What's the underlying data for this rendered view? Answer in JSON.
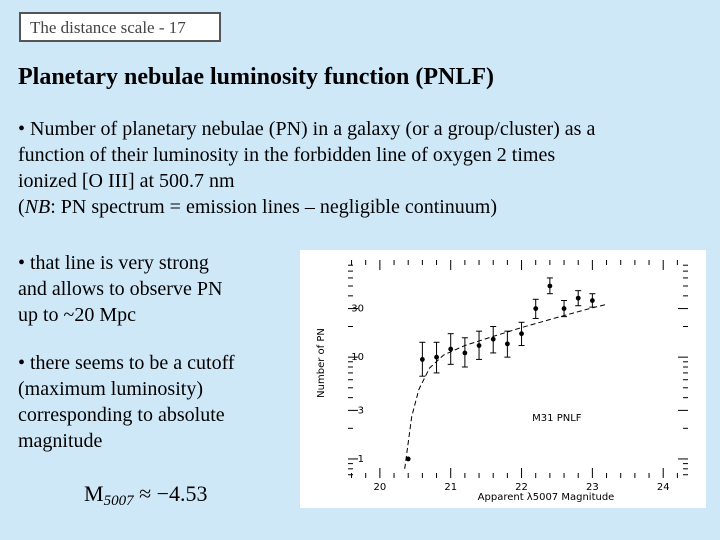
{
  "header": {
    "label": "The distance scale - 17"
  },
  "title": "Planetary nebulae luminosity function (PNLF)",
  "bullets": {
    "b1_lines": [
      "• Number of planetary nebulae (PN) in a galaxy (or a group/cluster) as a",
      "function of their luminosity in the forbidden line of oxygen 2 times",
      "ionized [O III] at 500.7 nm"
    ],
    "note_prefix": "(",
    "note_italic": "NB",
    "note_rest": ": PN spectrum = emission lines – negligible continuum)",
    "b2_lines": [
      "• that line is very strong",
      "and allows to observe PN",
      "up to ~20 Mpc"
    ],
    "b3_lines": [
      "• there seems to be a cutoff",
      "(maximum luminosity)",
      "corresponding to absolute",
      "magnitude"
    ]
  },
  "formula": {
    "symbol": "M",
    "subscript": "5007",
    "rest": " ≈ −4.53"
  },
  "colors": {
    "background": "#cfe8f8",
    "plot_background": "#ffffff",
    "ink": "#000000"
  },
  "chart_data": {
    "type": "scatter",
    "title": "",
    "annotation": "M31 PNLF",
    "xlabel": "Apparent λ5007 Magnitude",
    "ylabel": "Number of PN",
    "y_scale": "log",
    "xlim": [
      19.55,
      24.35
    ],
    "ylim": [
      0.65,
      90
    ],
    "xticks": [
      20,
      21,
      22,
      23,
      24
    ],
    "yticks": [
      1,
      3,
      10,
      30
    ],
    "points": [
      {
        "x": 20.4,
        "y": 1.0,
        "err_lo": 0.0,
        "err_hi": 0.0
      },
      {
        "x": 20.6,
        "y": 9.5,
        "err_lo": 3.0,
        "err_hi": 4.5
      },
      {
        "x": 20.8,
        "y": 10.0,
        "err_lo": 3.0,
        "err_hi": 4.0
      },
      {
        "x": 21.0,
        "y": 12.0,
        "err_lo": 3.5,
        "err_hi": 5.0
      },
      {
        "x": 21.2,
        "y": 11.0,
        "err_lo": 3.0,
        "err_hi": 4.5
      },
      {
        "x": 21.4,
        "y": 13.0,
        "err_lo": 3.5,
        "err_hi": 5.0
      },
      {
        "x": 21.6,
        "y": 15.0,
        "err_lo": 4.0,
        "err_hi": 5.0
      },
      {
        "x": 21.8,
        "y": 13.5,
        "err_lo": 3.5,
        "err_hi": 4.5
      },
      {
        "x": 22.0,
        "y": 17.0,
        "err_lo": 4.0,
        "err_hi": 5.0
      },
      {
        "x": 22.2,
        "y": 30.0,
        "err_lo": 6.0,
        "err_hi": 7.0
      },
      {
        "x": 22.4,
        "y": 50.0,
        "err_lo": 8.0,
        "err_hi": 10.0
      },
      {
        "x": 22.6,
        "y": 30.0,
        "err_lo": 5.0,
        "err_hi": 6.0
      },
      {
        "x": 22.8,
        "y": 38.0,
        "err_lo": 6.0,
        "err_hi": 7.0
      },
      {
        "x": 23.0,
        "y": 36.0,
        "err_lo": 5.0,
        "err_hi": 6.0
      }
    ],
    "fit_curve": {
      "style": "dashed",
      "x": [
        20.35,
        20.45,
        20.55,
        20.7,
        20.9,
        21.2,
        21.6,
        22.0,
        22.5,
        23.0,
        23.2
      ],
      "y": [
        0.8,
        2.6,
        4.8,
        7.8,
        10.5,
        13.0,
        16.0,
        19.5,
        24.5,
        30.5,
        33.0
      ]
    },
    "grid": false
  }
}
